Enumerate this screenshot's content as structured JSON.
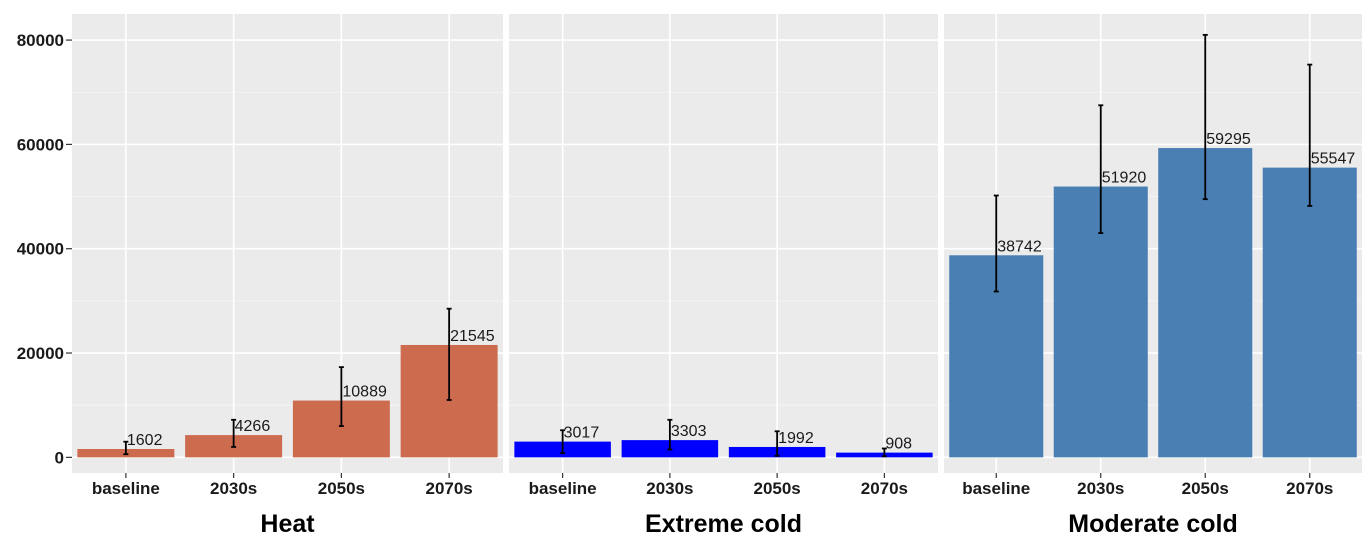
{
  "chart_data": {
    "type": "bar",
    "ylim": [
      -3000,
      85000
    ],
    "yticks": [
      0,
      20000,
      40000,
      60000,
      80000
    ],
    "ytick_labels": [
      "0",
      "20000",
      "40000",
      "60000",
      "80000"
    ],
    "grid": true,
    "categories": [
      "baseline",
      "2030s",
      "2050s",
      "2070s"
    ],
    "panels": [
      {
        "title": "Heat",
        "color": "#cd6b4f",
        "values": [
          1602,
          4266,
          10889,
          21545
        ],
        "value_labels": [
          "1602",
          "4266",
          "10889",
          "21545"
        ],
        "error_low": [
          600,
          2000,
          6000,
          11000
        ],
        "error_high": [
          3000,
          7200,
          17300,
          28500
        ]
      },
      {
        "title": "Extreme cold",
        "color": "#0000ff",
        "values": [
          3017,
          3303,
          1992,
          908
        ],
        "value_labels": [
          "3017",
          "3303",
          "1992",
          "908"
        ],
        "error_low": [
          800,
          1500,
          300,
          200
        ],
        "error_high": [
          5200,
          7200,
          5000,
          1700
        ]
      },
      {
        "title": "Moderate cold",
        "color": "#4a7fb3",
        "values": [
          38742,
          51920,
          59295,
          55547
        ],
        "value_labels": [
          "38742",
          "51920",
          "59295",
          "55547"
        ],
        "error_low": [
          31800,
          43000,
          49500,
          48200
        ],
        "error_high": [
          50200,
          67500,
          81000,
          75300
        ]
      }
    ]
  }
}
